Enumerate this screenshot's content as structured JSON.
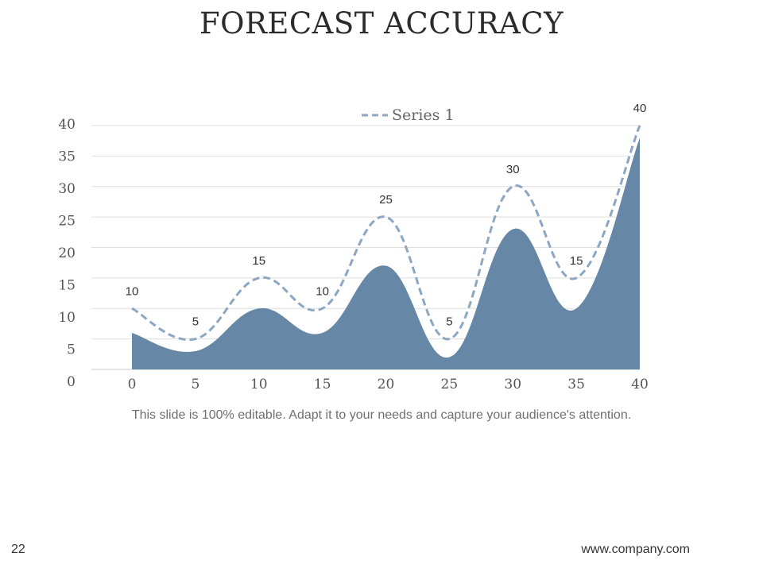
{
  "slide": {
    "title": "FORECAST ACCURACY",
    "caption": "This slide is 100% editable. Adapt it to your needs and capture your audience's attention.",
    "page_number": "22",
    "footer_url": "www.company.com"
  },
  "chart_data": {
    "type": "area",
    "title": "",
    "xlabel": "",
    "ylabel": "",
    "x": [
      0,
      5,
      10,
      15,
      20,
      25,
      30,
      35,
      40
    ],
    "xlim": [
      0,
      40
    ],
    "ylim": [
      0,
      40
    ],
    "x_ticks": [
      0,
      5,
      10,
      15,
      20,
      25,
      30,
      35,
      40
    ],
    "y_ticks": [
      0,
      5,
      10,
      15,
      20,
      25,
      30,
      35,
      40
    ],
    "grid": true,
    "legend": "top",
    "series": [
      {
        "name": "Series 1",
        "style": "dashed-line",
        "color": "#8da6c2",
        "values": [
          10,
          5,
          15,
          10,
          25,
          5,
          30,
          15,
          40
        ],
        "data_labels": [
          "10",
          "5",
          "15",
          "10",
          "25",
          "5",
          "30",
          "15",
          "40"
        ]
      },
      {
        "name": "",
        "style": "filled-area",
        "color": "#6688a6",
        "values": [
          6,
          3,
          10,
          6,
          17,
          2,
          23,
          10,
          38
        ]
      }
    ]
  }
}
